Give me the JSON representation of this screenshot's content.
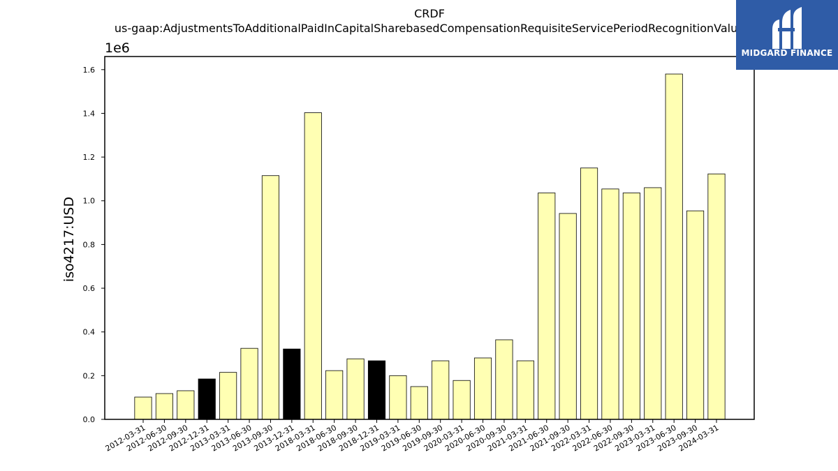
{
  "chart_data": {
    "type": "bar",
    "title": "CRDF",
    "subtitle": "us-gaap:AdjustmentsToAdditionalPaidInCapitalSharebasedCompensationRequisiteServicePeriodRecognitionValue",
    "ylabel": "iso4217:USD",
    "xlabel": "",
    "scale_label": "1e6",
    "ylim": [
      0,
      1.66
    ],
    "yticks": [
      "0.0",
      "0.2",
      "0.4",
      "0.6",
      "0.8",
      "1.0",
      "1.2",
      "1.4",
      "1.6"
    ],
    "categories": [
      "2012-03-31",
      "2012-06-30",
      "2012-09-30",
      "2012-12-31",
      "2013-03-31",
      "2013-06-30",
      "2013-09-30",
      "2013-12-31",
      "2018-03-31",
      "2018-06-30",
      "2018-09-30",
      "2018-12-31",
      "2019-03-31",
      "2019-06-30",
      "2019-09-30",
      "2020-03-31",
      "2020-06-30",
      "2020-09-30",
      "2021-03-31",
      "2021-06-30",
      "2021-09-30",
      "2022-03-31",
      "2022-06-30",
      "2022-09-30",
      "2023-03-31",
      "2023-06-30",
      "2023-09-30",
      "2024-03-31"
    ],
    "values": [
      0.102,
      0.118,
      0.131,
      0.185,
      0.215,
      0.325,
      1.115,
      0.322,
      1.403,
      0.223,
      0.277,
      0.268,
      0.2,
      0.15,
      0.268,
      0.178,
      0.281,
      0.364,
      0.268,
      1.036,
      0.942,
      1.15,
      1.054,
      1.036,
      1.06,
      1.58,
      0.954,
      1.123
    ],
    "bar_colors": [
      "#ffffb3",
      "#ffffb3",
      "#ffffb3",
      "#000000",
      "#ffffb3",
      "#ffffb3",
      "#ffffb3",
      "#000000",
      "#ffffb3",
      "#ffffb3",
      "#ffffb3",
      "#000000",
      "#ffffb3",
      "#ffffb3",
      "#ffffb3",
      "#ffffb3",
      "#ffffb3",
      "#ffffb3",
      "#ffffb3",
      "#ffffb3",
      "#ffffb3",
      "#ffffb3",
      "#ffffb3",
      "#ffffb3",
      "#ffffb3",
      "#ffffb3",
      "#ffffb3",
      "#ffffb3"
    ],
    "grid": false,
    "legend": "none"
  },
  "logo": {
    "text": "MIDGARD FINANCE",
    "background": "#2f5ca7",
    "icon": "midgard-logo-icon"
  }
}
